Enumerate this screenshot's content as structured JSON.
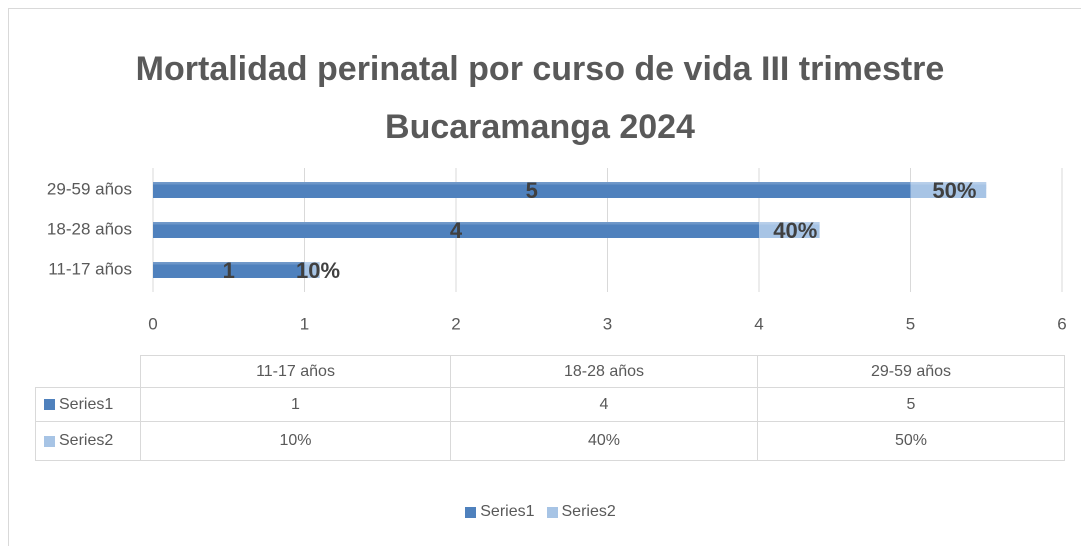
{
  "chart_data": {
    "type": "bar",
    "orientation": "horizontal",
    "stacked": true,
    "title": "Mortalidad perinatal por curso de vida III trimestre Bucaramanga 2024",
    "categories": [
      "11-17 años",
      "18-28 años",
      "29-59 años"
    ],
    "series": [
      {
        "name": "Series1",
        "color": "#4f81bd",
        "values": [
          1,
          4,
          5
        ]
      },
      {
        "name": "Series2",
        "color": "#a7c4e5",
        "values": [
          0.1,
          0.4,
          0.5
        ],
        "value_labels": [
          "10%",
          "40%",
          "50%"
        ]
      }
    ],
    "xlim": [
      0,
      6
    ],
    "xticks": [
      0,
      1,
      2,
      3,
      4,
      5,
      6
    ],
    "grid": true,
    "legend": "bottom",
    "data_table": true
  }
}
